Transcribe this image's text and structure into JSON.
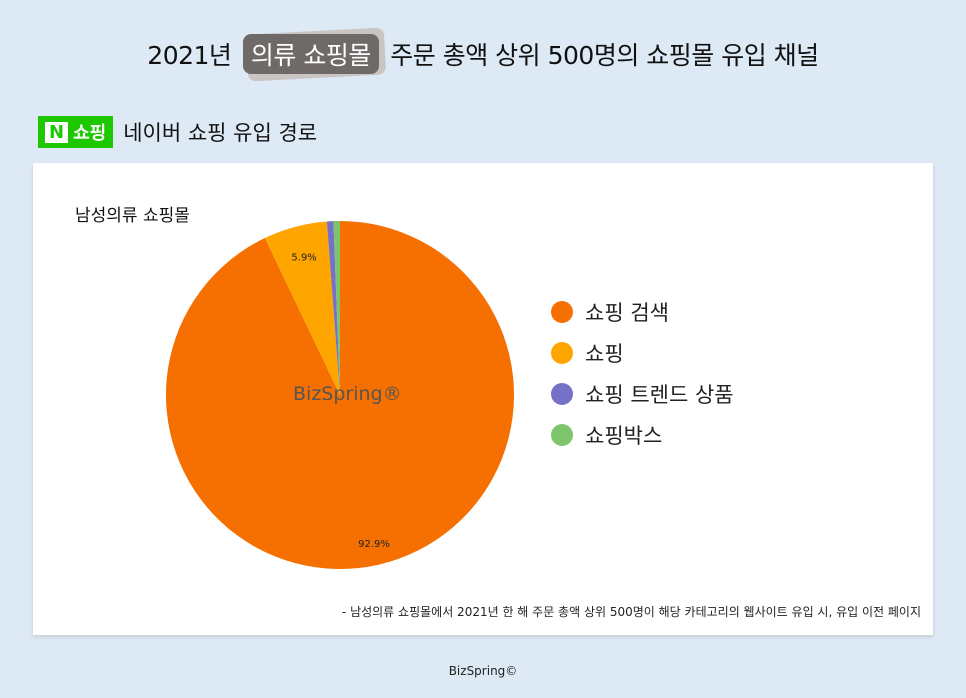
{
  "title": {
    "pre": "2021년",
    "highlight": "의류 쇼핑몰",
    "post": "주문 총액 상위 500명의 쇼핑몰 유입 채널"
  },
  "subhead": {
    "logo_n": "N",
    "logo_text": "쇼핑",
    "text": "네이버 쇼핑 유입 경로"
  },
  "watermark": "BizSpring®",
  "note": "- 남성의류 쇼핑몰에서 2021년 한 해 주문 총액 상위 500명이 해당 카테고리의 웹사이트 유입 시, 유입 이전 페이지",
  "footer": "BizSpring©",
  "chart_data": {
    "type": "pie",
    "title": "남성의류 쇼핑몰",
    "labels": [
      "쇼핑 검색",
      "쇼핑",
      "쇼핑 트렌드 상품",
      "쇼핑박스"
    ],
    "values": [
      92.9,
      5.9,
      0.6,
      0.6
    ],
    "data_labels": [
      "92.9%",
      "5.9%",
      "",
      ""
    ],
    "colors": [
      "#F57000",
      "#FFA500",
      "#7570C8",
      "#7DC46C"
    ],
    "legend": "right",
    "start": "12 o'clock clockwise"
  }
}
